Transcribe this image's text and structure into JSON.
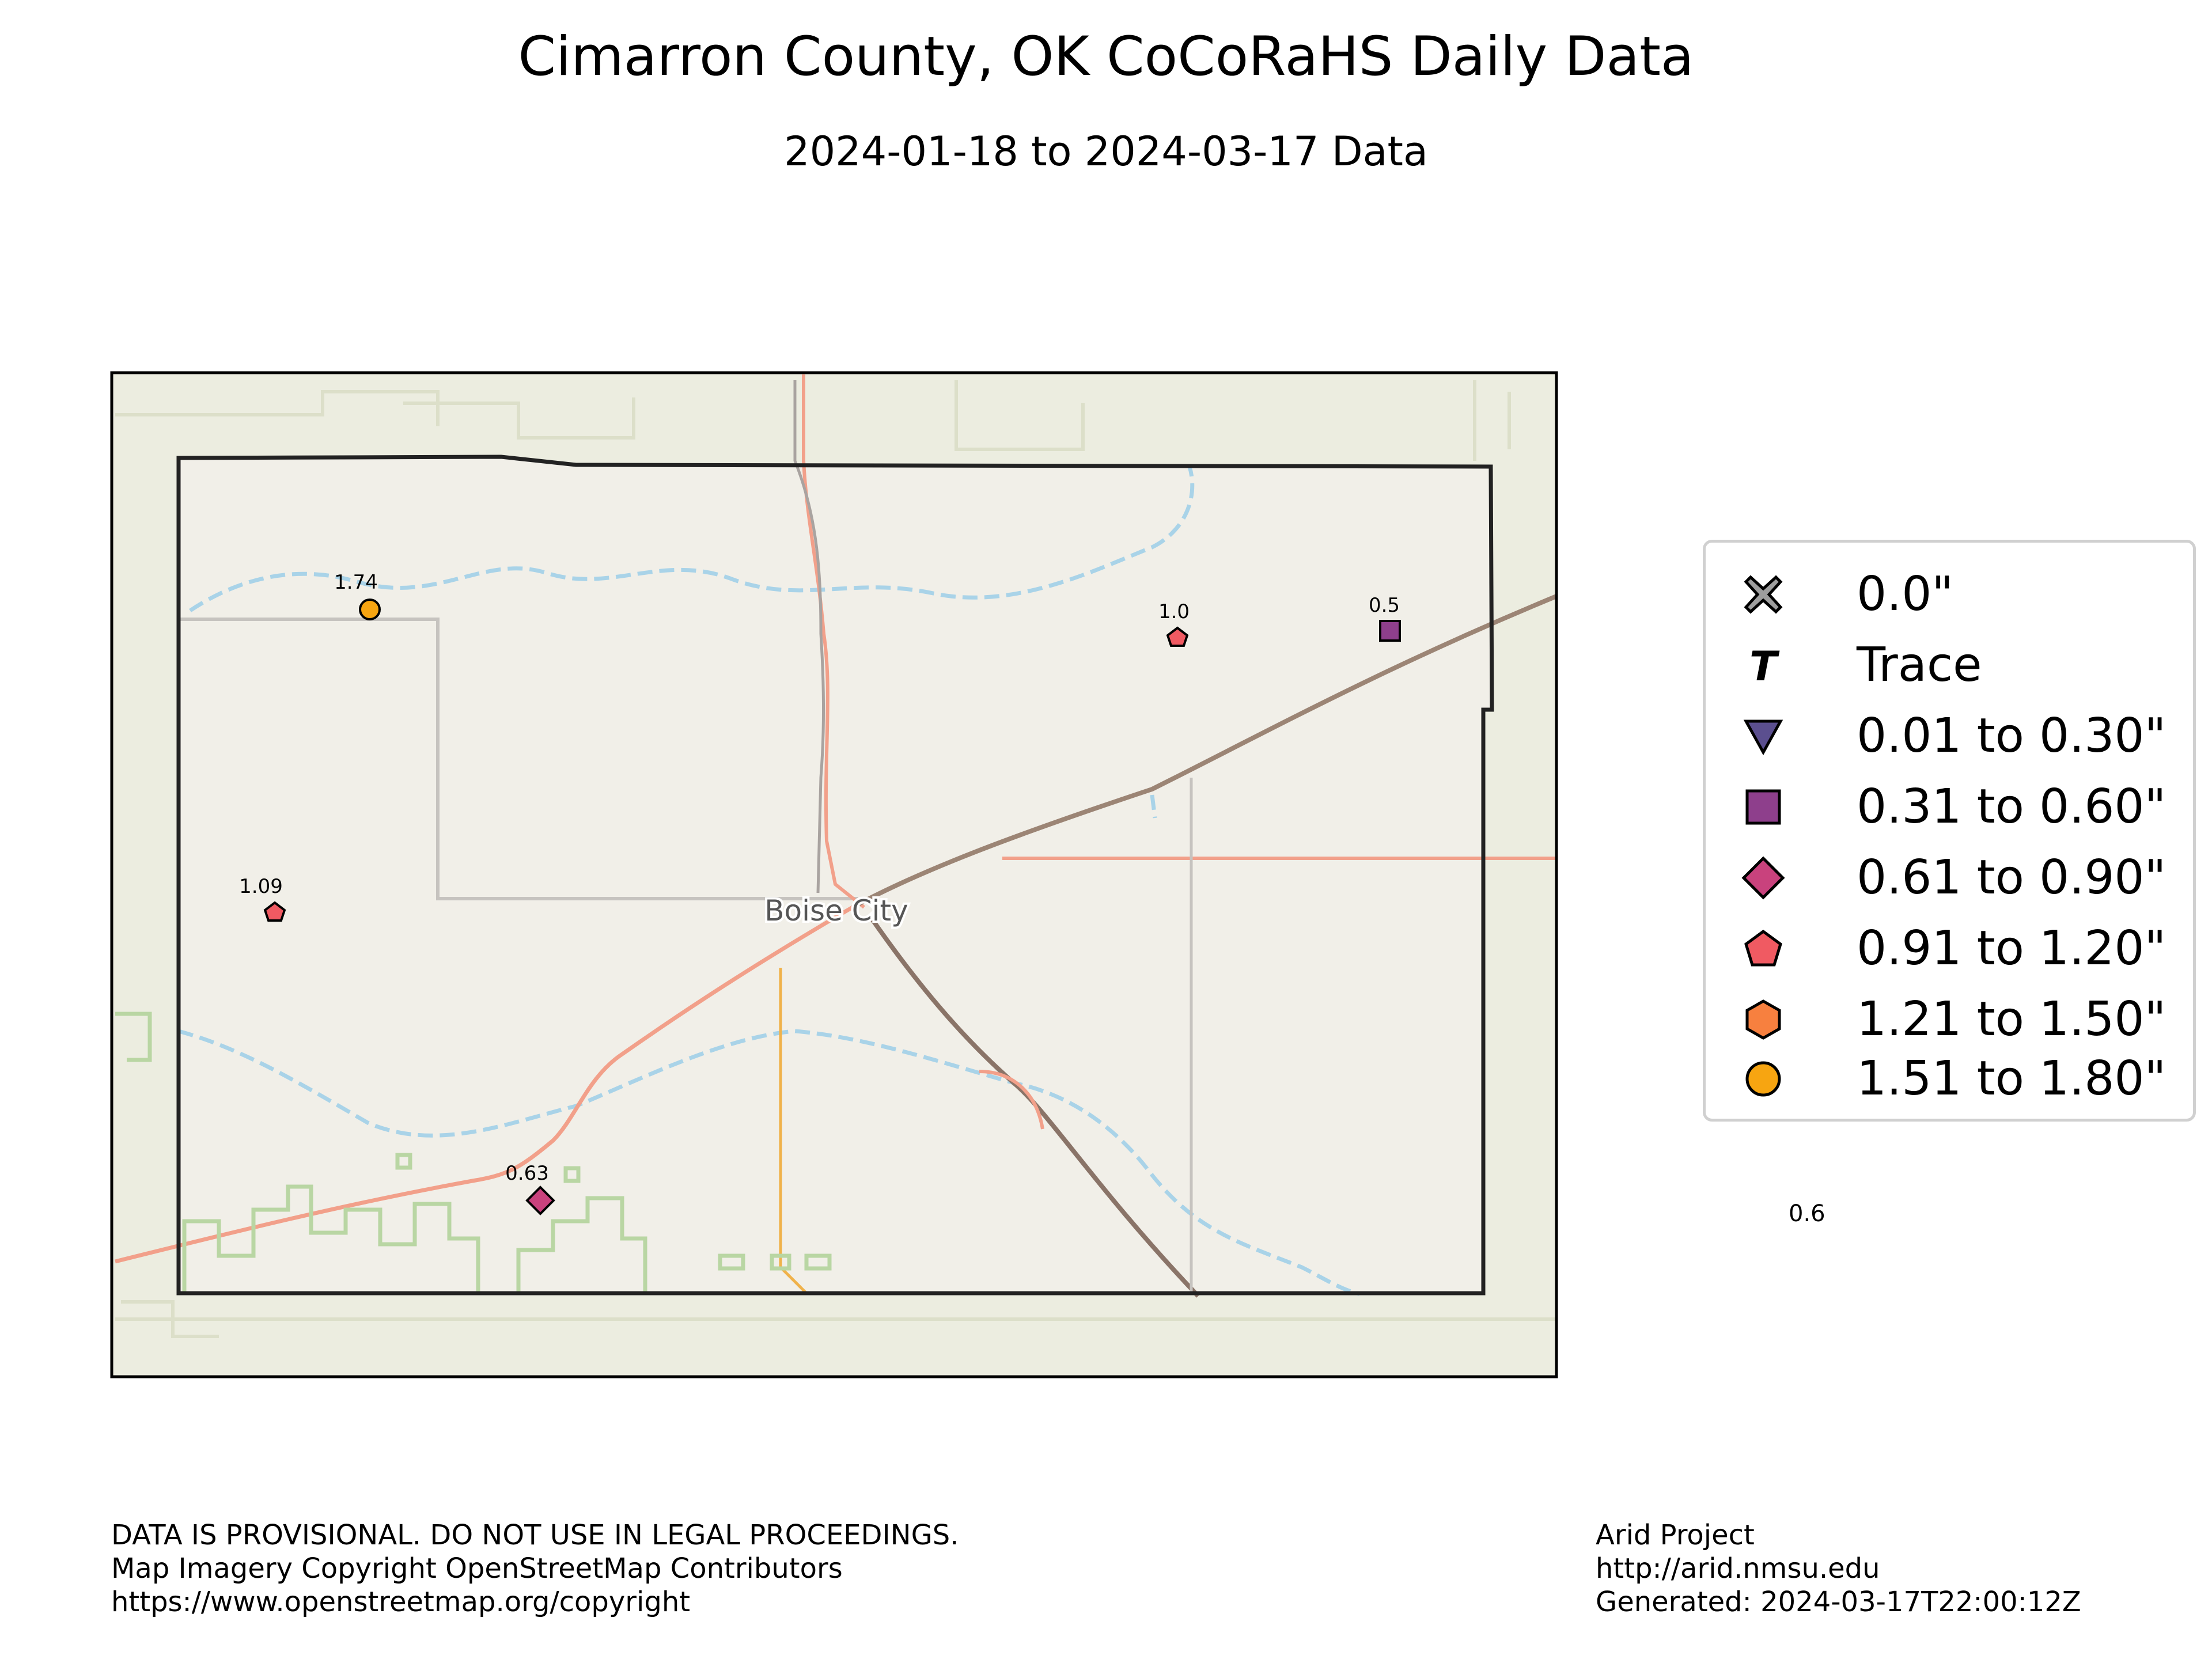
{
  "header": {
    "title": "Cimarron County, OK CoCoRaHS Daily Data",
    "subtitle": "2024-01-18 to 2024-03-17 Data"
  },
  "map": {
    "place_label": "Boise City",
    "basemap": "OpenStreetMap",
    "colors": {
      "land": "#ecede0",
      "county_fill": "#f1efe8",
      "river": "#a9d3e8",
      "highway": "#f2a08a",
      "minor_road": "#f0b24a",
      "railroad": "#8a7468",
      "boundary": "#222222",
      "green_area": "#b9d6a3"
    }
  },
  "stations": [
    {
      "value": "1.74",
      "category": "1.51 to 1.80\""
    },
    {
      "value": "1.0",
      "category": "0.91 to 1.20\""
    },
    {
      "value": "0.5",
      "category": "0.31 to 0.60\""
    },
    {
      "value": "1.09",
      "category": "0.91 to 1.20\""
    },
    {
      "value": "0.63",
      "category": "0.61 to 0.90\""
    }
  ],
  "legend": [
    {
      "label": "0.0\"",
      "icon": "x-icon",
      "color": "#9e9e9e"
    },
    {
      "label": "Trace",
      "icon": "trace-t-icon",
      "color": "#000000"
    },
    {
      "label": "0.01 to 0.30\"",
      "icon": "triangle-down-icon",
      "color": "#5b4f8f"
    },
    {
      "label": "0.31 to 0.60\"",
      "icon": "square-icon",
      "color": "#8e3f8c"
    },
    {
      "label": "0.61 to 0.90\"",
      "icon": "diamond-icon",
      "color": "#c9427d"
    },
    {
      "label": "0.91 to 1.20\"",
      "icon": "pentagon-icon",
      "color": "#f05a62"
    },
    {
      "label": "1.21 to 1.50\"",
      "icon": "hexagon-icon",
      "color": "#f7803f"
    },
    {
      "label": "1.51 to 1.80\"",
      "icon": "circle-icon",
      "color": "#f7a511"
    }
  ],
  "stray_label": "0.6",
  "footer": {
    "left": [
      "DATA IS PROVISIONAL. DO NOT USE IN LEGAL PROCEEDINGS.",
      "Map Imagery Copyright OpenStreetMap Contributors",
      "https://www.openstreetmap.org/copyright"
    ],
    "right": [
      "Arid Project",
      "http://arid.nmsu.edu",
      "Generated: 2024-03-17T22:00:12Z"
    ]
  }
}
